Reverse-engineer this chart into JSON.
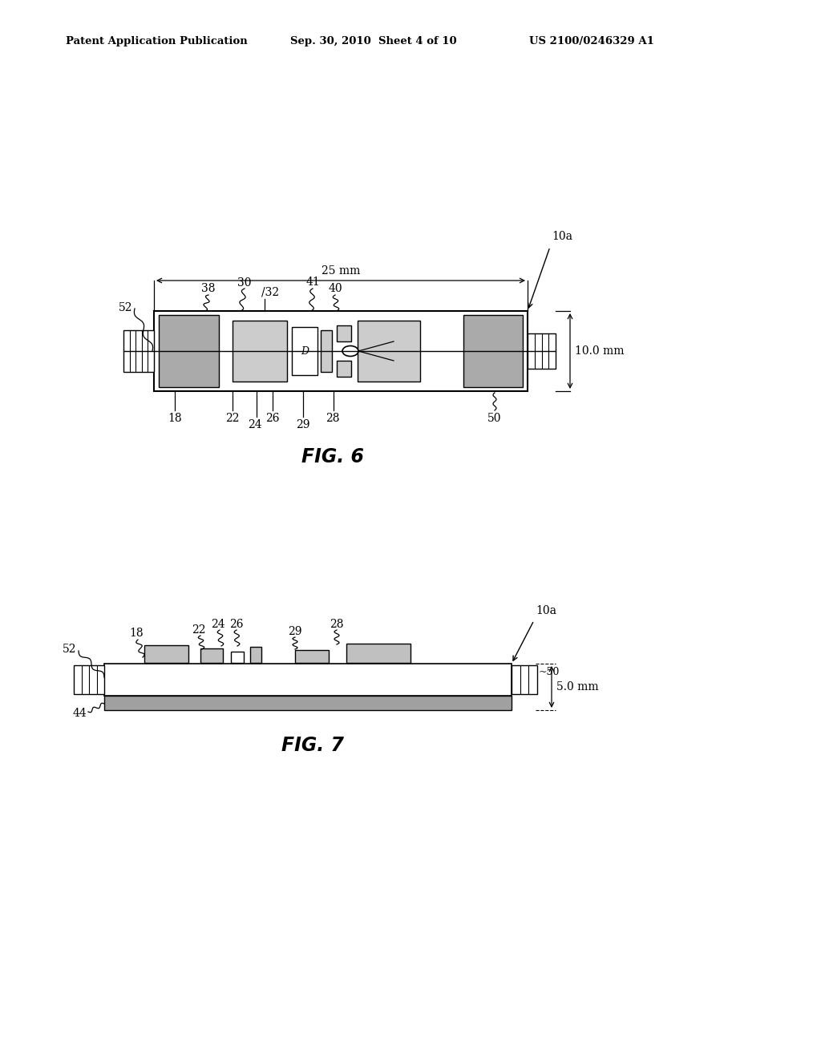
{
  "bg_color": "#ffffff",
  "header_text": "Patent Application Publication",
  "header_date": "Sep. 30, 2010  Sheet 4 of 10",
  "header_patent": "US 2100/0246329 A1",
  "fig6_title": "FIG. 6",
  "fig7_title": "FIG. 7",
  "label_10a": "10a",
  "label_25mm": "25 mm",
  "label_10mm": "10.0 mm",
  "label_5mm": "5.0 mm",
  "label_52": "52",
  "label_38": "38",
  "label_30": "30",
  "label_32": "32",
  "label_41": "41",
  "label_40": "40",
  "label_18": "18",
  "label_22": "22",
  "label_24": "24",
  "label_26": "26",
  "label_29": "29",
  "label_28": "28",
  "label_50": "50",
  "label_D": "D",
  "label_44": "44"
}
